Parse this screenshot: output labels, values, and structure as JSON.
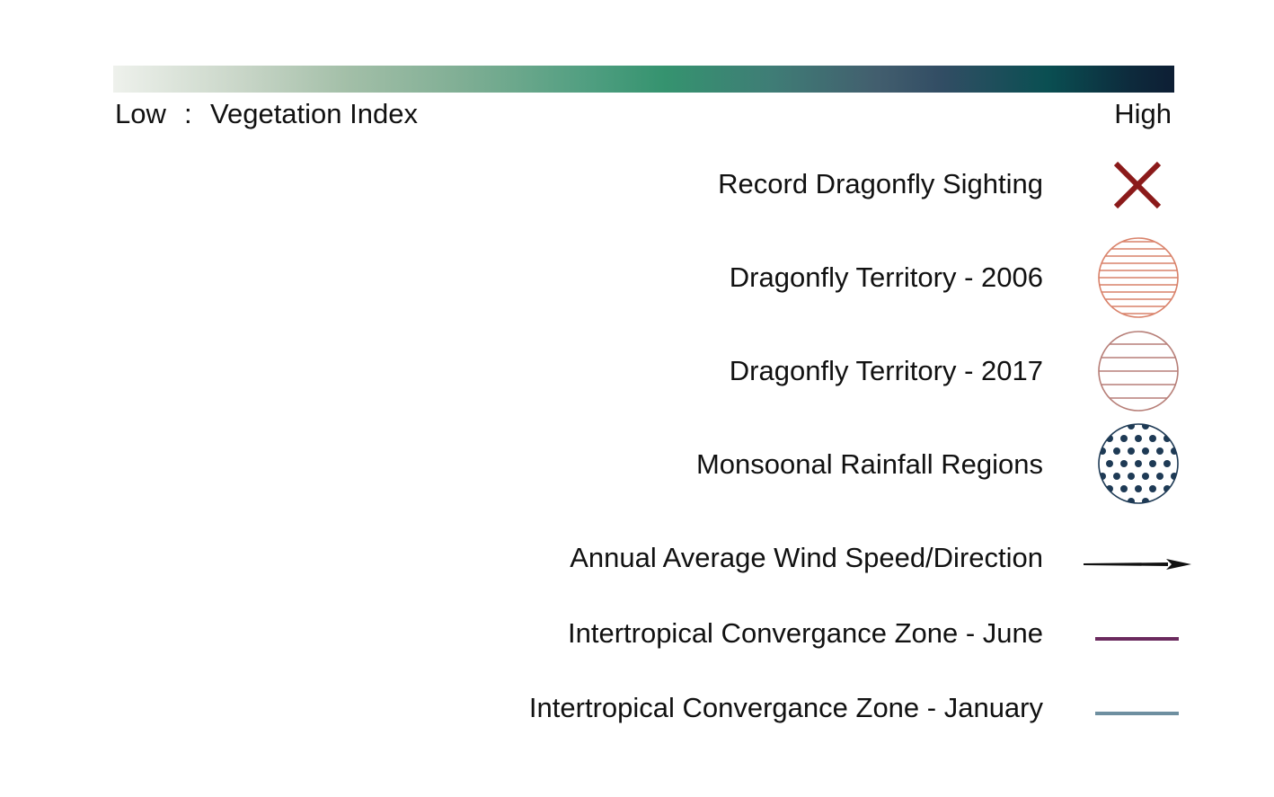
{
  "scale": {
    "low_label": "Low",
    "separator": ":",
    "title": "Vegetation Index",
    "high_label": "High",
    "gradient_colors": [
      "#eef1ec",
      "#a3bfa8",
      "#35936f",
      "#425e6e",
      "#0a4f52",
      "#0d1e34"
    ]
  },
  "legend": {
    "items": [
      {
        "label": "Record Dragonfly Sighting",
        "symbol": "cross-icon",
        "color": "#8b1a1a"
      },
      {
        "label": "Dragonfly Territory - 2006",
        "symbol": "hatched-circle",
        "color": "#d9826a"
      },
      {
        "label": "Dragonfly Territory - 2017",
        "symbol": "hatched-circle",
        "color": "#b77f78"
      },
      {
        "label": "Monsoonal Rainfall Regions",
        "symbol": "dotted-circle",
        "color": "#1e3a55"
      },
      {
        "label": "Annual Average Wind Speed/Direction",
        "symbol": "arrow-icon",
        "color": "#111111"
      },
      {
        "label": "Intertropical Convergance Zone - June",
        "symbol": "line",
        "color": "#6b2a5e"
      },
      {
        "label": "Intertropical Convergance Zone - January",
        "symbol": "line",
        "color": "#6e8fa0"
      }
    ]
  }
}
